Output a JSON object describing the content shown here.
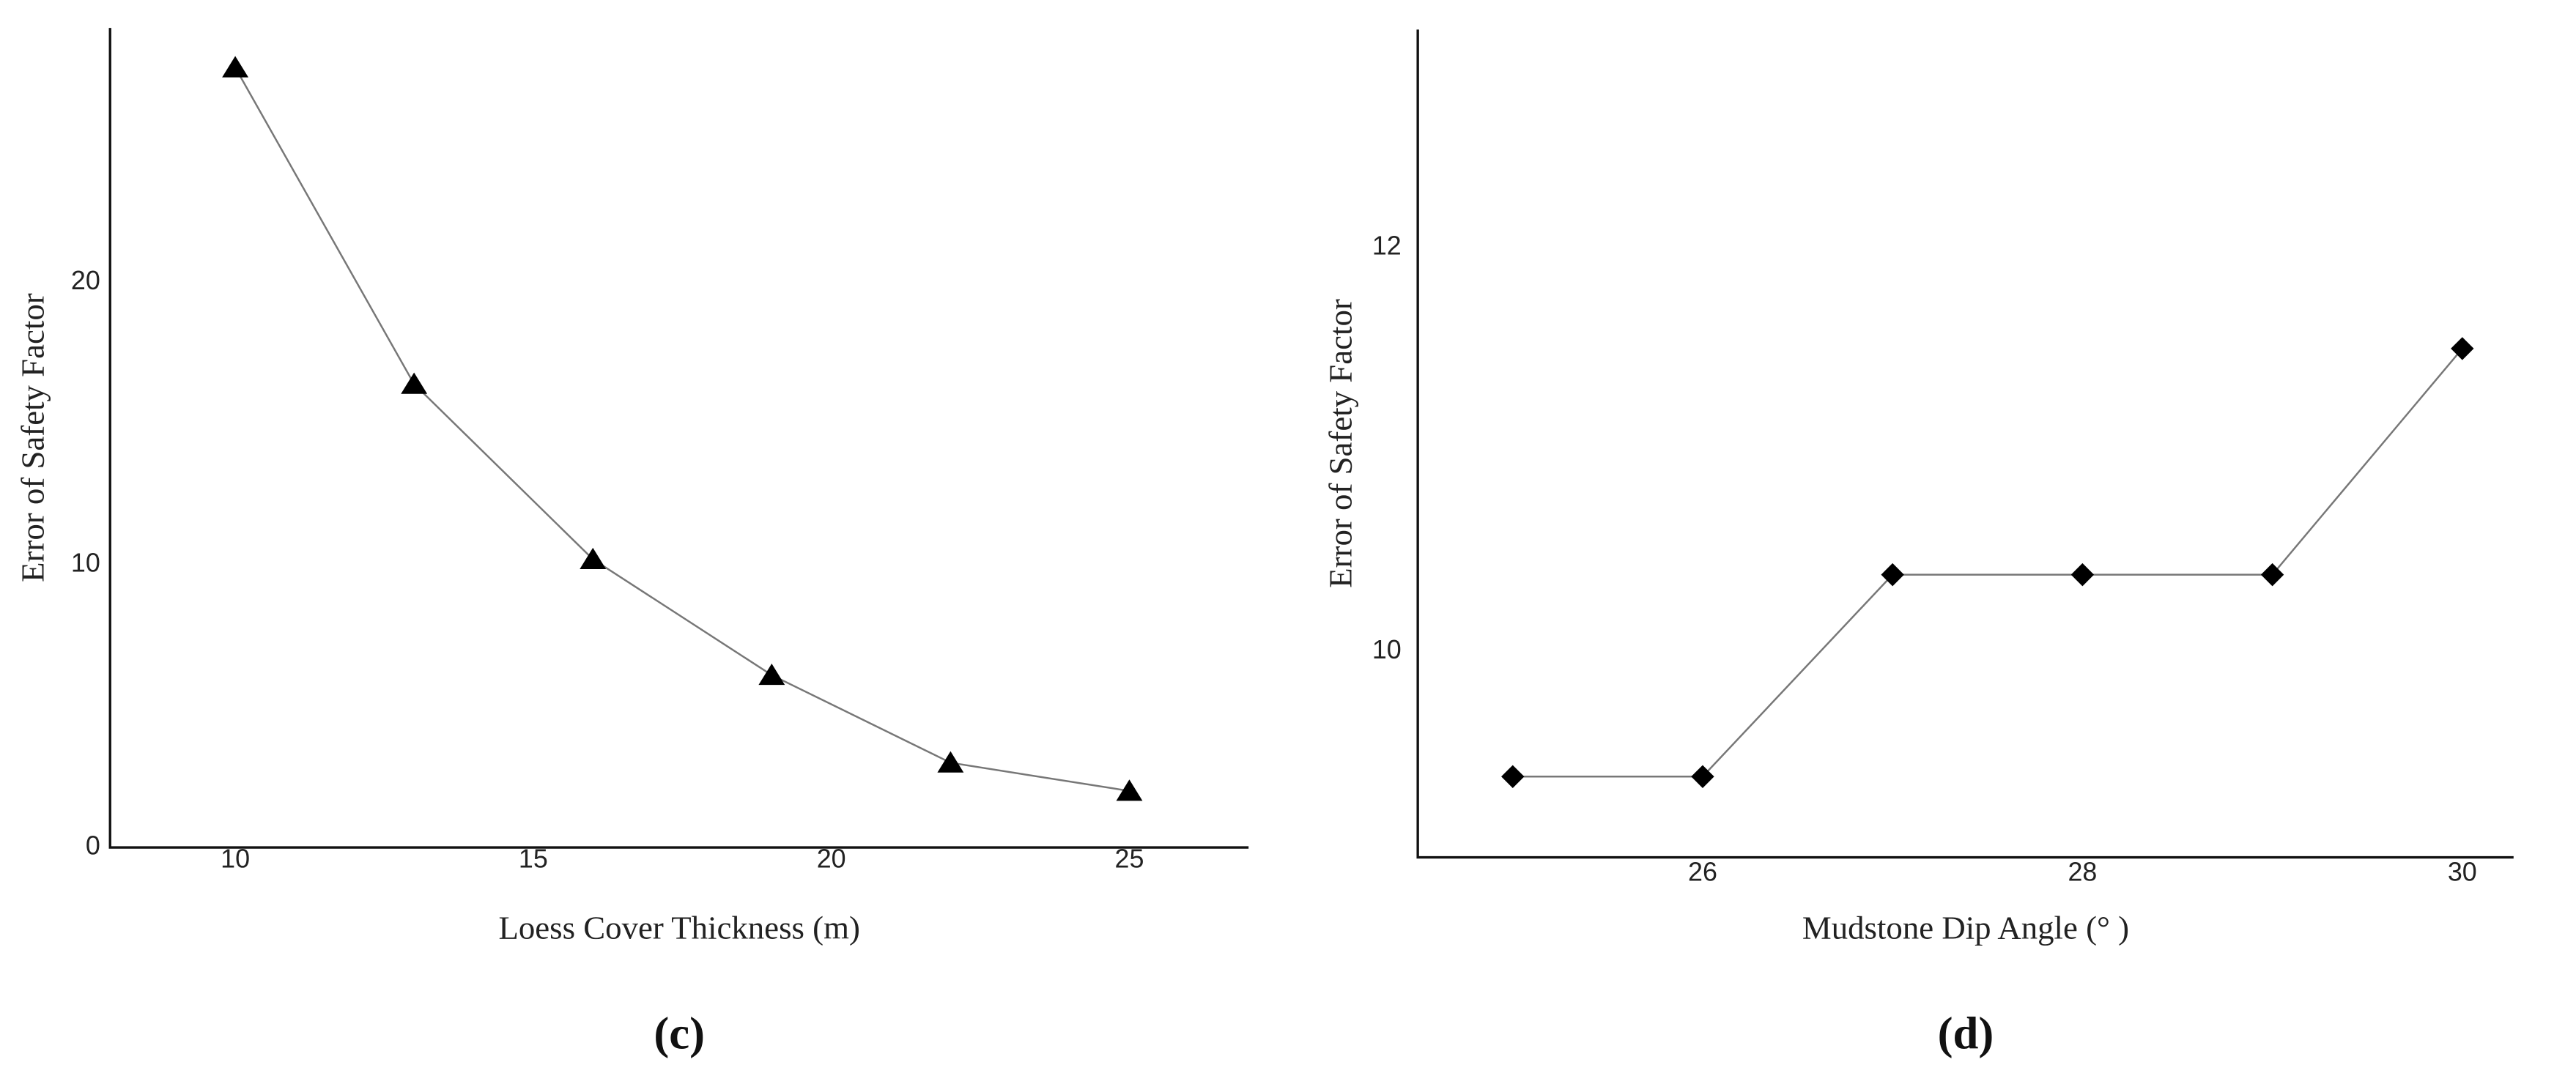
{
  "chart_data": [
    {
      "type": "line",
      "caption": "(c)",
      "x_label": "Loess Cover Thickness (m)",
      "y_label": "Error of  Safety Factor",
      "x": [
        10,
        13,
        16,
        19,
        22,
        25
      ],
      "values": [
        27.6,
        16.4,
        10.2,
        6.1,
        3.0,
        2.0
      ],
      "marker": "triangle",
      "color": "#000000",
      "xlim": [
        7.9,
        27
      ],
      "xticks": [
        10,
        15,
        20,
        25
      ],
      "ylim": [
        0,
        29
      ],
      "yticks": [
        0,
        10,
        20
      ]
    },
    {
      "type": "line",
      "caption": "(d)",
      "x_label": "Mudstone Dip Angle (°  )",
      "y_label": "Error of  Safety Factor",
      "x": [
        25,
        26,
        27,
        28,
        29,
        30
      ],
      "values": [
        9.38,
        9.38,
        10.38,
        10.38,
        10.38,
        11.5
      ],
      "marker": "diamond",
      "color": "#000000",
      "xlim": [
        24.5,
        30.27
      ],
      "xticks": [
        26,
        28,
        30
      ],
      "ylim": [
        8.98,
        13.08
      ],
      "yticks": [
        10,
        12
      ]
    }
  ]
}
